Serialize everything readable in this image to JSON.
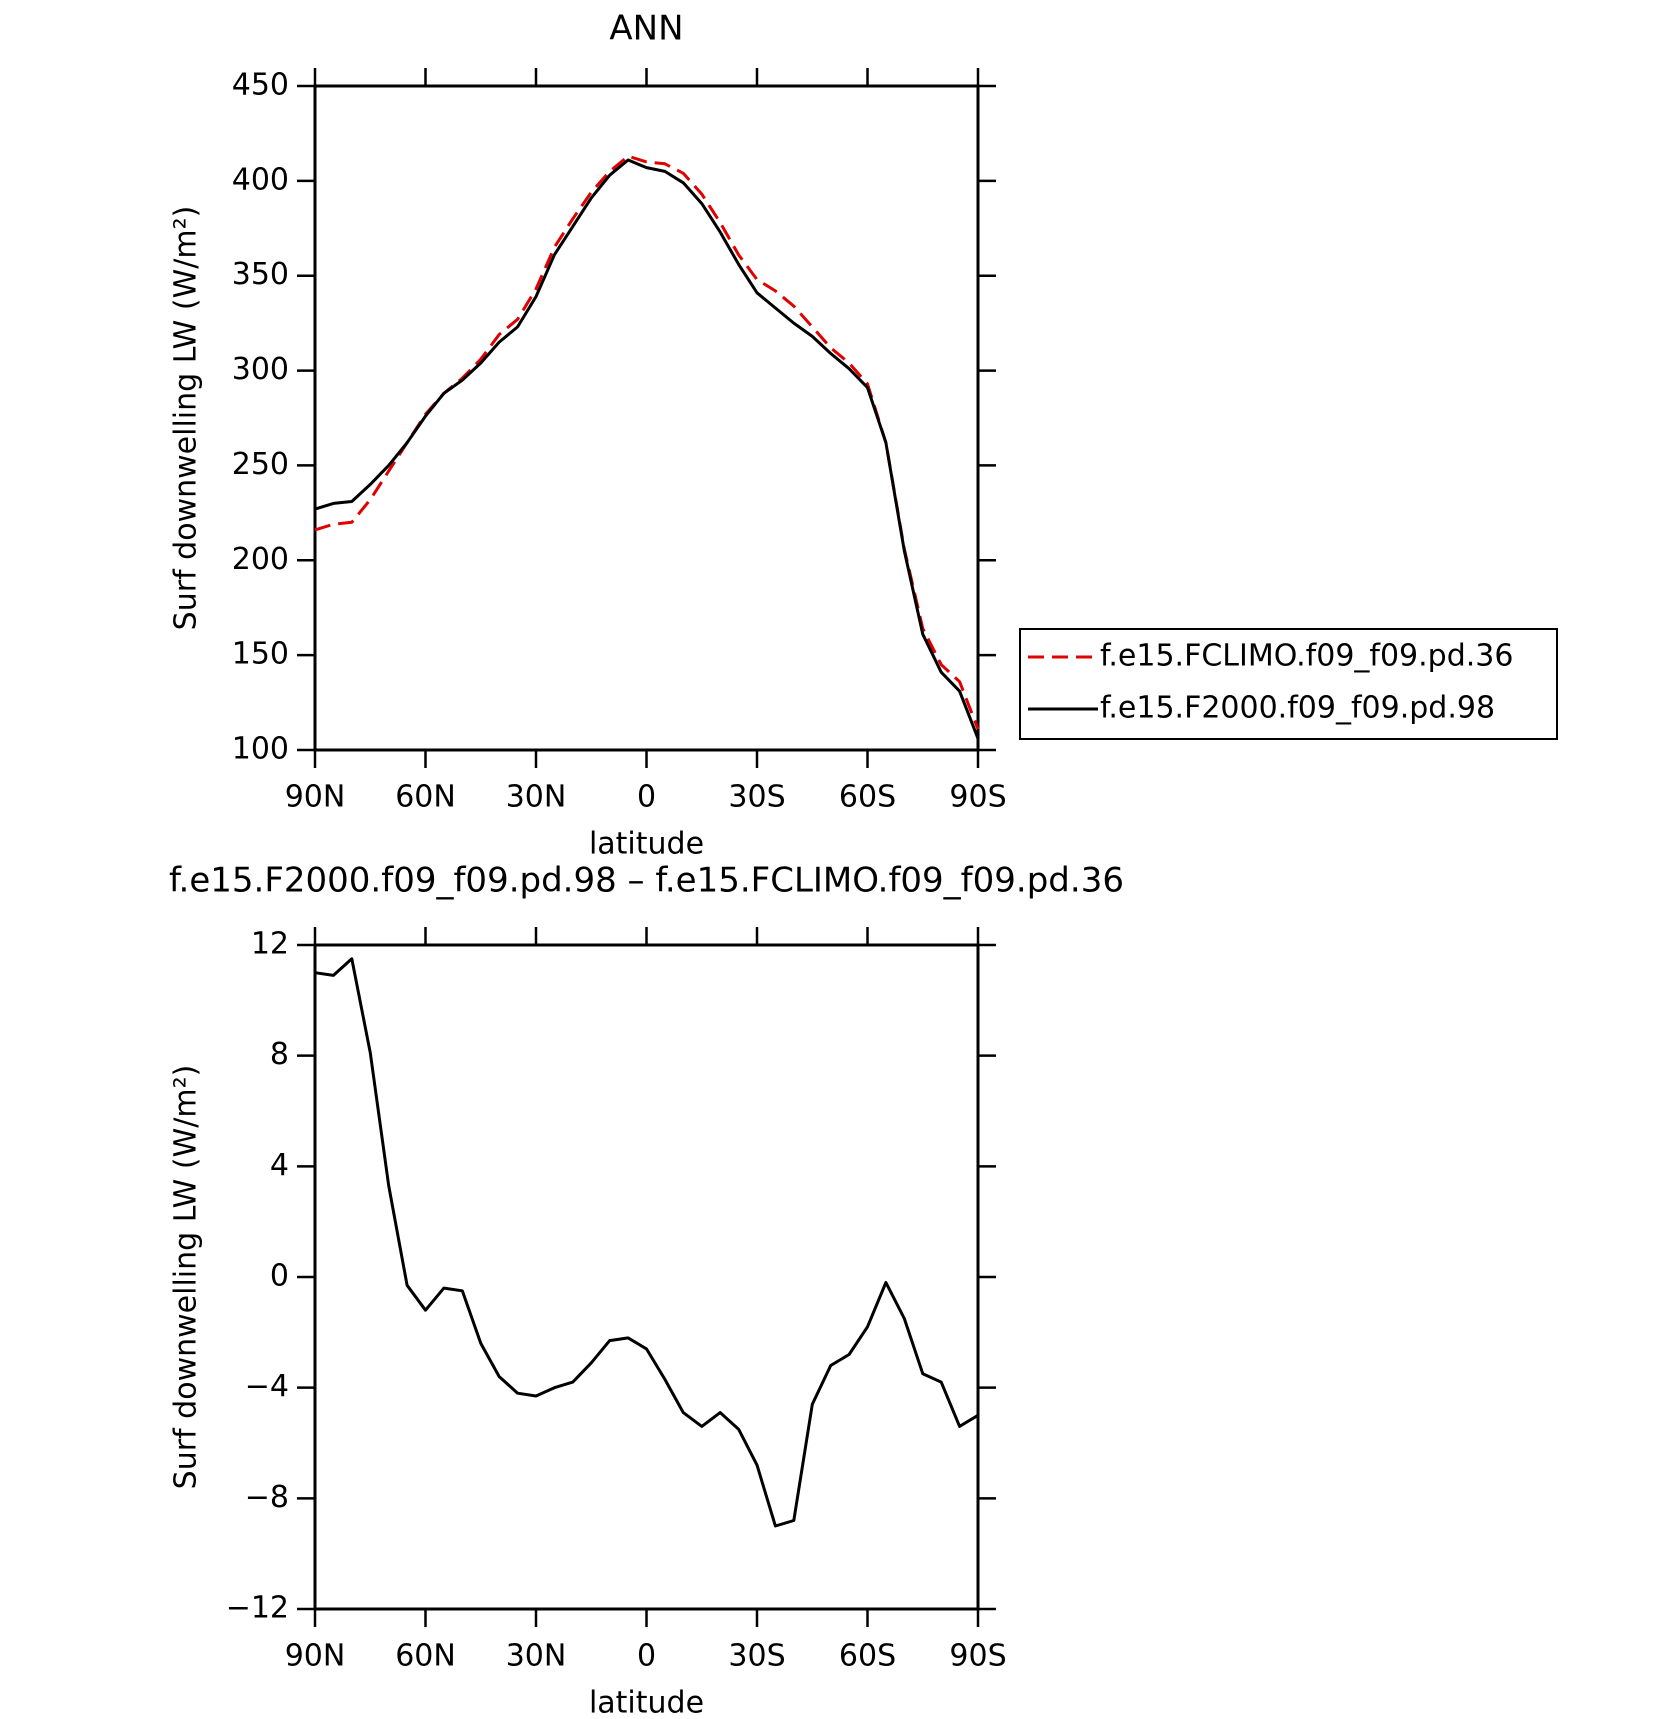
{
  "chart_data": [
    {
      "type": "line",
      "title": "ANN",
      "xlabel": "latitude",
      "ylabel": "Surf downwelling LW (W/m²)",
      "x": [
        90,
        85,
        80,
        75,
        70,
        65,
        60,
        55,
        50,
        45,
        40,
        35,
        30,
        25,
        20,
        15,
        10,
        5,
        0,
        -5,
        -10,
        -15,
        -20,
        -25,
        -30,
        -35,
        -40,
        -45,
        -50,
        -55,
        -60,
        -65,
        -70,
        -75,
        -80,
        -85,
        -90
      ],
      "xlim": [
        90,
        -90
      ],
      "xticks": [
        {
          "value": 90,
          "label": "90N"
        },
        {
          "value": 60,
          "label": "60N"
        },
        {
          "value": 30,
          "label": "30N"
        },
        0,
        {
          "value": -30,
          "label": "30S"
        },
        {
          "value": -60,
          "label": "60S"
        },
        {
          "value": -90,
          "label": "90S"
        }
      ],
      "ylim": [
        100,
        450
      ],
      "yticks": [
        100,
        150,
        200,
        250,
        300,
        350,
        400,
        450
      ],
      "legend": "right",
      "series": [
        {
          "name": "f.e15.FCLIMO.f09_f09.pd.36",
          "color": "#e00000",
          "line_style": "dashed",
          "values": [
            216,
            219,
            220,
            232,
            247,
            262,
            277,
            288,
            296,
            306,
            319,
            327,
            343,
            365,
            380,
            394,
            405,
            413,
            410,
            409,
            404,
            393,
            378,
            361,
            348,
            342,
            334,
            323,
            312,
            304,
            293,
            262,
            206,
            164,
            145,
            136,
            111
          ]
        },
        {
          "name": "f.e15.F2000.f09_f09.pd.98",
          "color": "#000000",
          "line_style": "solid",
          "values": [
            227,
            230,
            231,
            240,
            250,
            262,
            276,
            288,
            295,
            304,
            315,
            323,
            339,
            361,
            376,
            391,
            403,
            411,
            407,
            405,
            399,
            388,
            373,
            356,
            341,
            333,
            325,
            318,
            309,
            301,
            291,
            262,
            205,
            161,
            141,
            131,
            106
          ]
        }
      ]
    },
    {
      "type": "line",
      "title": "f.e15.F2000.f09_f09.pd.98 – f.e15.FCLIMO.f09_f09.pd.36",
      "xlabel": "latitude",
      "ylabel": "Surf downwelling LW (W/m²)",
      "x": [
        90,
        85,
        80,
        75,
        70,
        65,
        60,
        55,
        50,
        45,
        40,
        35,
        30,
        25,
        20,
        15,
        10,
        5,
        0,
        -5,
        -10,
        -15,
        -20,
        -25,
        -30,
        -35,
        -40,
        -45,
        -50,
        -55,
        -60,
        -65,
        -70,
        -75,
        -80,
        -85,
        -90
      ],
      "xlim": [
        90,
        -90
      ],
      "xticks": [
        {
          "value": 90,
          "label": "90N"
        },
        {
          "value": 60,
          "label": "60N"
        },
        {
          "value": 30,
          "label": "30N"
        },
        0,
        {
          "value": -30,
          "label": "30S"
        },
        {
          "value": -60,
          "label": "60S"
        },
        {
          "value": -90,
          "label": "90S"
        }
      ],
      "ylim": [
        -12,
        12
      ],
      "yticks": [
        {
          "value": -12,
          "label": "−12"
        },
        {
          "value": -8,
          "label": "−8"
        },
        {
          "value": -4,
          "label": "−4"
        },
        0,
        4,
        8,
        12
      ],
      "series": [
        {
          "color": "#000000",
          "line_style": "solid",
          "values": [
            11,
            10.9,
            11.5,
            8.1,
            3.3,
            -0.3,
            -1.2,
            -0.4,
            -0.5,
            -2.4,
            -3.6,
            -4.2,
            -4.3,
            -4,
            -3.8,
            -3.1,
            -2.3,
            -2.2,
            -2.6,
            -3.7,
            -4.9,
            -5.4,
            -4.9,
            -5.5,
            -6.8,
            -9,
            -8.8,
            -4.6,
            -3.2,
            -2.8,
            -1.8,
            -0.2,
            -1.5,
            -3.5,
            -3.8,
            -5.4,
            -5
          ]
        }
      ]
    }
  ]
}
